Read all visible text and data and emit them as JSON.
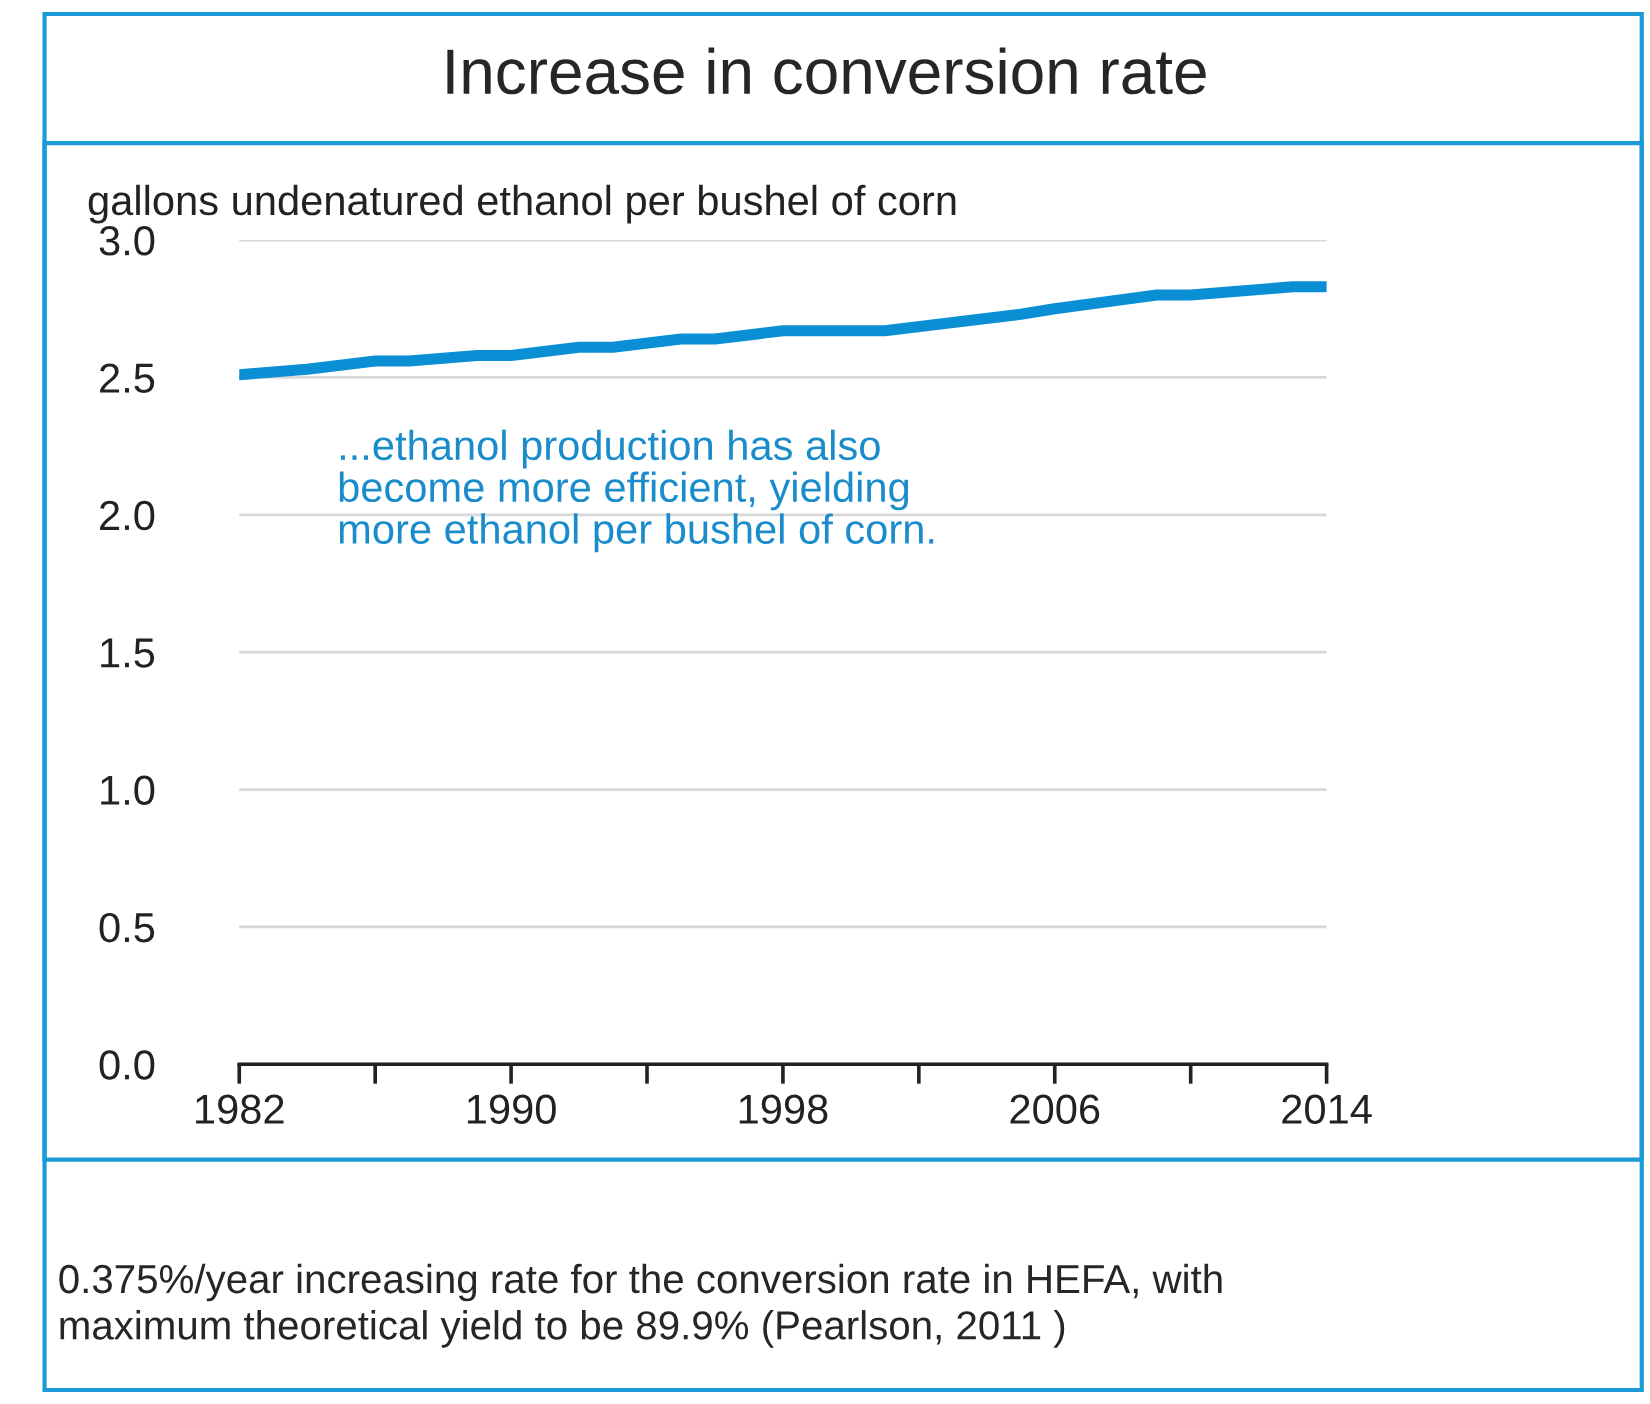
{
  "chart_data": {
    "type": "line",
    "title": "Increase in conversion rate",
    "ylabel": "gallons undenatured ethanol per bushel of corn",
    "x": [
      1982,
      1984,
      1986,
      1987,
      1989,
      1990,
      1992,
      1993,
      1995,
      1996,
      1998,
      2001,
      2003,
      2005,
      2006,
      2009,
      2010,
      2013,
      2014
    ],
    "series": [
      {
        "color": "#0a8fd4",
        "values": [
          2.51,
          2.53,
          2.56,
          2.56,
          2.58,
          2.58,
          2.61,
          2.61,
          2.64,
          2.64,
          2.67,
          2.67,
          2.7,
          2.73,
          2.75,
          2.8,
          2.8,
          2.83,
          2.83
        ]
      }
    ],
    "xlim": [
      1982,
      2014
    ],
    "xticks": [
      1982,
      {
        "value": 1986,
        "label": null
      },
      1990,
      {
        "value": 1994,
        "label": null
      },
      1998,
      {
        "value": 2002,
        "label": null
      },
      2006,
      {
        "value": 2010,
        "label": null
      },
      2014
    ],
    "ylim": [
      0,
      3
    ],
    "yticks": [
      {
        "value": 0,
        "label": "0.0"
      },
      {
        "value": 0.5,
        "label": "0.5"
      },
      {
        "value": 1,
        "label": "1.0"
      },
      {
        "value": 1.5,
        "label": "1.5"
      },
      {
        "value": 2,
        "label": "2.0"
      },
      {
        "value": 2.5,
        "label": "2.5"
      },
      {
        "value": 3,
        "label": "3.0"
      }
    ],
    "grid": "y",
    "marker": "none",
    "line_style": "solid",
    "legend": false,
    "annotations": [
      "...ethanol production has also\nbecome more efficient, yielding\nmore ethanol per bushel of corn.",
      "0.375%/year increasing rate for the conversion rate in HEFA, with\nmaximum theoretical yield to be 89.9% (Pearlson, 2011 )"
    ]
  }
}
